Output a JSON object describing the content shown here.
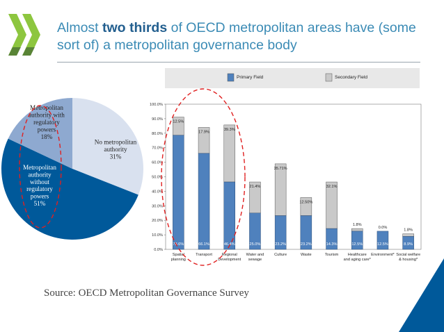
{
  "slide": {
    "title_pre": "Almost ",
    "title_bold": "two thirds",
    "title_post": " of OECD metropolitan areas have (some sort of) a metropolitan governance body",
    "source": "Source: OECD Metropolitan Governance Survey",
    "colors": {
      "accent": "#3b8bb5",
      "logo": "#8dc63f",
      "dark_blue": "#00599a"
    }
  },
  "chart_data": [
    {
      "type": "pie",
      "slices": [
        {
          "lines": [
            "No metropolitan",
            "authority",
            "31%"
          ],
          "value": 31,
          "color": "#d9e1ef"
        },
        {
          "lines": [
            "Metropolitan",
            "authority",
            "without",
            "regulatory",
            "powers",
            "51%"
          ],
          "value": 51,
          "color": "#00599a"
        },
        {
          "lines": [
            "Metropolitan",
            "authority with",
            "regulatory",
            "powers",
            "18%"
          ],
          "value": 18,
          "color": "#8ea9d0"
        }
      ]
    },
    {
      "type": "bar",
      "stacked": true,
      "ylim": [
        0,
        100
      ],
      "yticks": [
        "0.0%",
        "10.0%",
        "20.0%",
        "30.0%",
        "40.0%",
        "50.0%",
        "60.0%",
        "70.0%",
        "80.0%",
        "90.0%",
        "100.0%"
      ],
      "categories": [
        [
          "Spatial",
          "planning"
        ],
        [
          "Transport"
        ],
        [
          "Regional",
          "Development"
        ],
        [
          "Water and",
          "sewage"
        ],
        [
          "Culture"
        ],
        [
          "Waste"
        ],
        [
          "Tourism"
        ],
        [
          "Healthcare",
          "and aging care*"
        ],
        [
          "Environment*"
        ],
        [
          "Social welfare",
          "& housing*"
        ]
      ],
      "legend_position": "top",
      "series": [
        {
          "name": "Primary Field",
          "color": "#4f81bd",
          "values": [
            78.6,
            66.1,
            46.4,
            25.0,
            23.2,
            23.2,
            14.3,
            12.5,
            12.5,
            8.9
          ],
          "labels": [
            "78.6%",
            "66.1%",
            "46.4%",
            "25.0%",
            "23.2%",
            "23.2%",
            "14.3%",
            "12.5%",
            "12.5%",
            "8.9%"
          ]
        },
        {
          "name": "Secondary Field",
          "color": "#c9c9c9",
          "values": [
            12.5,
            17.9,
            39.3,
            21.4,
            35.71,
            12.5,
            32.1,
            1.8,
            0.0,
            1.8
          ],
          "labels": [
            "12.5%",
            "17.9%",
            "39.3%",
            "21.4%",
            "35.71%",
            "12.50%",
            "32.1%",
            "1.8%",
            "0.0%",
            "1.8%"
          ]
        }
      ]
    }
  ]
}
